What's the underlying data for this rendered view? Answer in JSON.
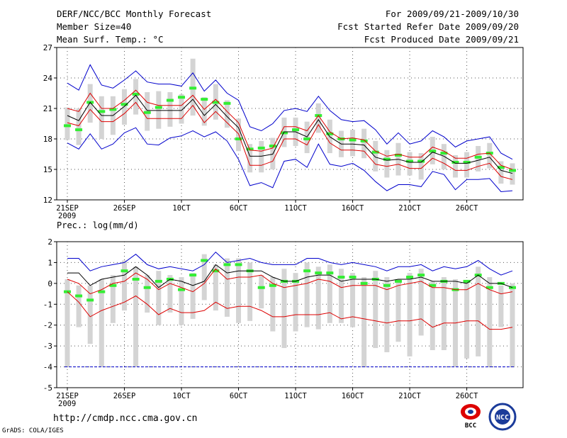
{
  "header": {
    "title": "DERF/NCC/BCC Monthly Forecast",
    "member_size": "Member Size=40",
    "variable": "Mean Surf. Temp.: °C",
    "forecast_range": "For 2009/09/21-2009/10/30",
    "started_refer": "Fcst Started Refer Date 2009/09/20",
    "produced": "Fcst Produced Date 2009/09/21"
  },
  "footer": {
    "url": "http://cmdp.ncc.cma.gov.cn",
    "credit": "GrADS: COLA/IGES",
    "logo_bcc": "BCC",
    "logo_ncc": "NCC"
  },
  "colors": {
    "box": "#d4d4d4",
    "median": "#33ee33",
    "mean": "#000000",
    "inner_band": "#dd0000",
    "outer_band": "#0000cc"
  },
  "chart_data": [
    {
      "type": "line",
      "title": "Mean Surf. Temp.: °C",
      "ylim": [
        12,
        27
      ],
      "yticks": [
        12,
        15,
        18,
        21,
        24,
        27
      ],
      "xtick_labels": [
        "21SEP",
        "26SEP",
        "10CT",
        "6OCT",
        "11OCT",
        "16OCT",
        "21OCT",
        "26OCT"
      ],
      "xtick_days": [
        1,
        6,
        11,
        16,
        21,
        26,
        31,
        36
      ],
      "x_sub_label": "2009",
      "days": 40,
      "series": [
        {
          "name": "ensemble mean",
          "color": "#000000",
          "values": [
            20.3,
            19.8,
            21.6,
            20.3,
            20.3,
            21.2,
            22.3,
            20.8,
            20.8,
            20.8,
            20.8,
            21.9,
            20.3,
            21.4,
            20.2,
            19.1,
            16.3,
            16.3,
            16.5,
            18.7,
            18.7,
            18.2,
            19.9,
            18.2,
            17.5,
            17.5,
            17.4,
            16.2,
            15.9,
            16.0,
            15.7,
            15.7,
            16.7,
            16.3,
            15.6,
            15.6,
            15.9,
            16.2,
            14.9,
            14.6
          ]
        },
        {
          "name": "upper spread",
          "color": "#dd0000",
          "values": [
            21.0,
            20.7,
            22.5,
            21.0,
            21.0,
            21.8,
            22.8,
            21.6,
            21.3,
            21.3,
            21.3,
            22.3,
            20.9,
            21.9,
            20.7,
            19.6,
            16.9,
            16.8,
            17.1,
            19.2,
            19.2,
            18.8,
            20.3,
            18.7,
            18.0,
            18.1,
            17.9,
            16.8,
            16.3,
            16.5,
            16.2,
            16.2,
            17.2,
            16.8,
            16.1,
            16.1,
            16.5,
            16.6,
            15.4,
            15.0
          ]
        },
        {
          "name": "lower spread",
          "color": "#dd0000",
          "values": [
            19.6,
            19.3,
            20.9,
            19.7,
            19.7,
            20.5,
            21.6,
            20.0,
            20.0,
            20.0,
            20.0,
            21.3,
            19.6,
            20.7,
            19.6,
            18.5,
            15.4,
            15.4,
            15.8,
            18.0,
            18.0,
            17.4,
            19.4,
            17.6,
            16.9,
            16.9,
            16.8,
            15.5,
            15.3,
            15.5,
            15.1,
            15.1,
            16.1,
            15.6,
            14.9,
            14.9,
            15.3,
            15.6,
            14.3,
            14.0
          ]
        },
        {
          "name": "maximum",
          "color": "#0000cc",
          "values": [
            23.5,
            22.8,
            25.3,
            23.3,
            23.0,
            23.8,
            24.7,
            23.6,
            23.4,
            23.4,
            23.2,
            24.5,
            22.7,
            23.8,
            22.5,
            21.8,
            19.2,
            18.8,
            19.5,
            20.8,
            21.0,
            20.7,
            22.2,
            20.8,
            19.9,
            19.7,
            19.8,
            18.9,
            17.5,
            18.6,
            17.5,
            17.8,
            18.8,
            18.2,
            17.2,
            17.8,
            18.0,
            18.2,
            16.6,
            16.0
          ]
        },
        {
          "name": "minimum",
          "color": "#0000cc",
          "values": [
            17.6,
            17.0,
            18.5,
            17.0,
            17.5,
            18.6,
            19.1,
            17.5,
            17.4,
            18.1,
            18.3,
            18.8,
            18.2,
            18.7,
            17.8,
            16.0,
            13.4,
            13.7,
            13.2,
            15.8,
            16.0,
            15.2,
            17.5,
            15.5,
            15.3,
            15.6,
            14.9,
            13.8,
            12.9,
            13.5,
            13.5,
            13.3,
            14.8,
            14.5,
            13.0,
            14.0,
            14.0,
            14.1,
            12.8,
            12.9
          ]
        }
      ],
      "boxes": {
        "median": [
          19.3,
          18.9,
          21.6,
          20.7,
          20.9,
          21.4,
          22.4,
          20.6,
          21.1,
          21.8,
          22.1,
          23.0,
          21.9,
          21.6,
          21.5,
          18.0,
          17.0,
          17.1,
          17.3,
          18.6,
          18.9,
          18.0,
          20.3,
          18.5,
          18.0,
          17.9,
          17.8,
          16.7,
          16.0,
          16.4,
          15.8,
          15.8,
          16.8,
          16.6,
          15.7,
          15.7,
          16.2,
          16.6,
          15.2,
          14.9
        ],
        "q1": [
          17.9,
          17.4,
          19.6,
          18.0,
          18.4,
          19.4,
          20.4,
          18.8,
          19.0,
          19.2,
          19.5,
          20.3,
          19.3,
          19.9,
          19.1,
          16.8,
          14.7,
          14.7,
          15.0,
          17.2,
          17.3,
          16.6,
          18.6,
          16.6,
          16.2,
          16.3,
          16.1,
          14.8,
          14.2,
          14.4,
          14.4,
          14.0,
          15.5,
          15.0,
          14.2,
          14.2,
          14.8,
          15.1,
          13.6,
          13.5
        ],
        "q3": [
          21.1,
          21.0,
          23.4,
          22.2,
          22.2,
          22.9,
          23.9,
          22.6,
          22.7,
          22.6,
          22.4,
          25.9,
          22.1,
          23.4,
          21.8,
          20.0,
          17.5,
          17.8,
          18.1,
          20.1,
          20.1,
          19.7,
          21.5,
          19.9,
          18.8,
          18.9,
          19.0,
          17.8,
          16.9,
          17.6,
          16.7,
          16.6,
          18.2,
          17.5,
          16.4,
          16.7,
          17.3,
          17.6,
          15.8,
          15.6
        ]
      }
    },
    {
      "type": "line",
      "title": "Prec.: log(mm/d)",
      "ylim": [
        -5,
        2
      ],
      "yticks": [
        -5,
        -4,
        -3,
        -2,
        -1,
        0,
        1,
        2
      ],
      "xtick_labels": [
        "21SEP",
        "26SEP",
        "10CT",
        "6OCT",
        "11OCT",
        "16OCT",
        "21OCT",
        "26OCT"
      ],
      "xtick_days": [
        1,
        6,
        11,
        16,
        21,
        26,
        31,
        36
      ],
      "x_sub_label": "2009",
      "days": 40,
      "series": [
        {
          "name": "ensemble mean",
          "color": "#000000",
          "values": [
            0.5,
            0.5,
            -0.1,
            0.2,
            0.3,
            0.4,
            0.8,
            0.4,
            -0.2,
            0.2,
            0.1,
            -0.1,
            0.1,
            0.9,
            0.5,
            0.6,
            0.6,
            0.6,
            0.3,
            0.1,
            0.1,
            0.3,
            0.4,
            0.4,
            0.1,
            0.2,
            0.2,
            0.2,
            0.1,
            0.2,
            0.2,
            0.3,
            0.1,
            0.1,
            0.1,
            0.0,
            0.4,
            0.0,
            0.0,
            -0.2
          ]
        },
        {
          "name": "upper spread",
          "color": "#dd0000",
          "values": [
            0.2,
            0.0,
            -0.5,
            -0.3,
            0.0,
            0.1,
            0.5,
            0.2,
            -0.3,
            0.0,
            -0.2,
            -0.4,
            0.0,
            0.7,
            0.2,
            0.3,
            0.3,
            0.4,
            0.0,
            -0.2,
            -0.1,
            0.0,
            0.2,
            0.1,
            -0.2,
            -0.1,
            -0.1,
            -0.1,
            -0.3,
            -0.1,
            0.0,
            0.1,
            -0.2,
            -0.2,
            -0.3,
            -0.3,
            0.0,
            -0.3,
            -0.5,
            -0.4
          ]
        },
        {
          "name": "lower spread",
          "color": "#dd0000",
          "values": [
            -0.4,
            -0.9,
            -1.6,
            -1.3,
            -1.1,
            -0.9,
            -0.6,
            -1.0,
            -1.5,
            -1.2,
            -1.4,
            -1.4,
            -1.3,
            -0.9,
            -1.2,
            -1.1,
            -1.1,
            -1.3,
            -1.6,
            -1.6,
            -1.5,
            -1.5,
            -1.5,
            -1.4,
            -1.7,
            -1.6,
            -1.7,
            -1.8,
            -1.9,
            -1.8,
            -1.8,
            -1.7,
            -2.1,
            -1.9,
            -1.9,
            -1.8,
            -1.8,
            -2.2,
            -2.2,
            -2.1
          ]
        },
        {
          "name": "maximum",
          "color": "#0000cc",
          "values": [
            1.2,
            1.2,
            0.6,
            0.8,
            0.9,
            1.0,
            1.4,
            0.9,
            0.7,
            0.8,
            0.7,
            0.6,
            0.9,
            1.5,
            1.0,
            1.1,
            1.2,
            1.0,
            0.9,
            0.9,
            0.9,
            1.2,
            1.2,
            1.0,
            0.9,
            1.0,
            0.9,
            0.8,
            0.6,
            0.8,
            0.8,
            0.9,
            0.6,
            0.8,
            0.7,
            0.8,
            1.1,
            0.7,
            0.4,
            0.6
          ]
        },
        {
          "name": "minimum",
          "color": "#0000cc",
          "values": [
            -4.0,
            -4.0,
            -4.0,
            -4.0,
            -4.0,
            -4.0,
            -4.0,
            -4.0,
            -4.0,
            -4.0,
            -4.0,
            -4.0,
            -4.0,
            -4.0,
            -4.0,
            -4.0,
            -4.0,
            -4.0,
            -4.0,
            -4.0,
            -4.0,
            -4.0,
            -4.0,
            -4.0,
            -4.0,
            -4.0,
            -4.0,
            -4.0,
            -4.0,
            -4.0,
            -4.0,
            -4.0,
            -4.0,
            -4.0,
            -4.0,
            -4.0,
            -4.0,
            -4.0,
            -4.0,
            -4.0
          ]
        }
      ],
      "boxes": {
        "median": [
          -0.4,
          -0.6,
          -0.8,
          -0.4,
          -0.1,
          0.6,
          0.2,
          -0.2,
          0.1,
          0.2,
          -0.3,
          0.4,
          1.1,
          0.6,
          0.9,
          0.9,
          0.6,
          -0.2,
          -0.1,
          0.1,
          0.1,
          0.6,
          0.5,
          0.5,
          0.3,
          0.3,
          0.0,
          0.2,
          -0.1,
          0.1,
          0.3,
          0.4,
          -0.1,
          0.1,
          -0.3,
          0.1,
          0.4,
          -0.2,
          0.0,
          -0.2
        ],
        "q1": [
          -4.0,
          -2.1,
          -2.9,
          -4.0,
          -1.9,
          -1.3,
          -4.0,
          -1.4,
          -2.0,
          -1.4,
          -2.0,
          -1.7,
          -0.8,
          -1.3,
          -1.6,
          -1.9,
          -1.8,
          -1.2,
          -2.3,
          -3.1,
          -2.3,
          -2.1,
          -2.2,
          -1.9,
          -1.9,
          -2.1,
          -4.0,
          -3.1,
          -3.3,
          -2.8,
          -3.5,
          -2.5,
          -3.2,
          -3.2,
          -4.0,
          -3.6,
          -3.5,
          -4.0,
          -2.1,
          -4.0
        ],
        "q3": [
          0.2,
          -0.1,
          -0.1,
          0.2,
          0.4,
          1.1,
          0.8,
          0.4,
          0.6,
          0.4,
          0.3,
          0.5,
          1.4,
          0.9,
          1.2,
          1.2,
          1.0,
          0.4,
          0.3,
          0.7,
          0.5,
          1.0,
          0.8,
          0.9,
          0.7,
          0.5,
          0.3,
          0.6,
          0.3,
          0.2,
          0.5,
          0.7,
          0.1,
          0.3,
          0.2,
          0.1,
          0.8,
          0.3,
          -0.1,
          0.0
        ]
      },
      "floor_line": -4.0
    }
  ]
}
